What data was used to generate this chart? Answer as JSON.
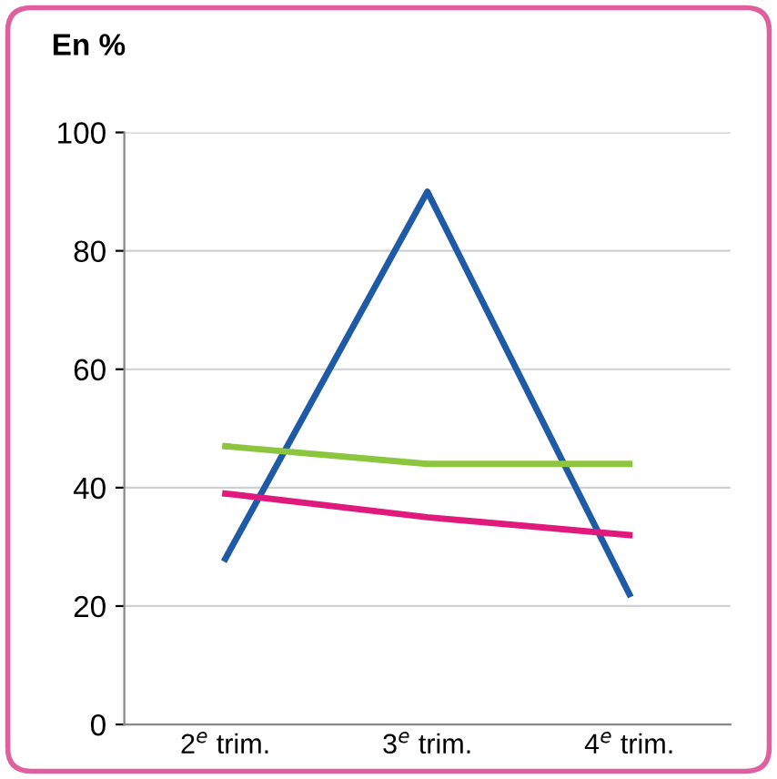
{
  "chart_data": {
    "type": "line",
    "ylabel": "En %",
    "categories": [
      "2$^{e}$ trim.",
      "3$^{e}$ trim.",
      "4$^{e}$ trim."
    ],
    "series": [
      {
        "color": "#1f5aa6",
        "values": [
          28,
          90,
          22
        ]
      },
      {
        "color": "#8cc63f",
        "values": [
          47,
          44,
          44
        ]
      },
      {
        "color": "#e0197d",
        "values": [
          39,
          35,
          32
        ]
      }
    ],
    "ylim": [
      0,
      100
    ],
    "yticks": [
      0,
      20,
      40,
      60,
      80,
      100
    ],
    "grid": "y",
    "legend": false,
    "marker": "none",
    "line_style": "solid"
  }
}
